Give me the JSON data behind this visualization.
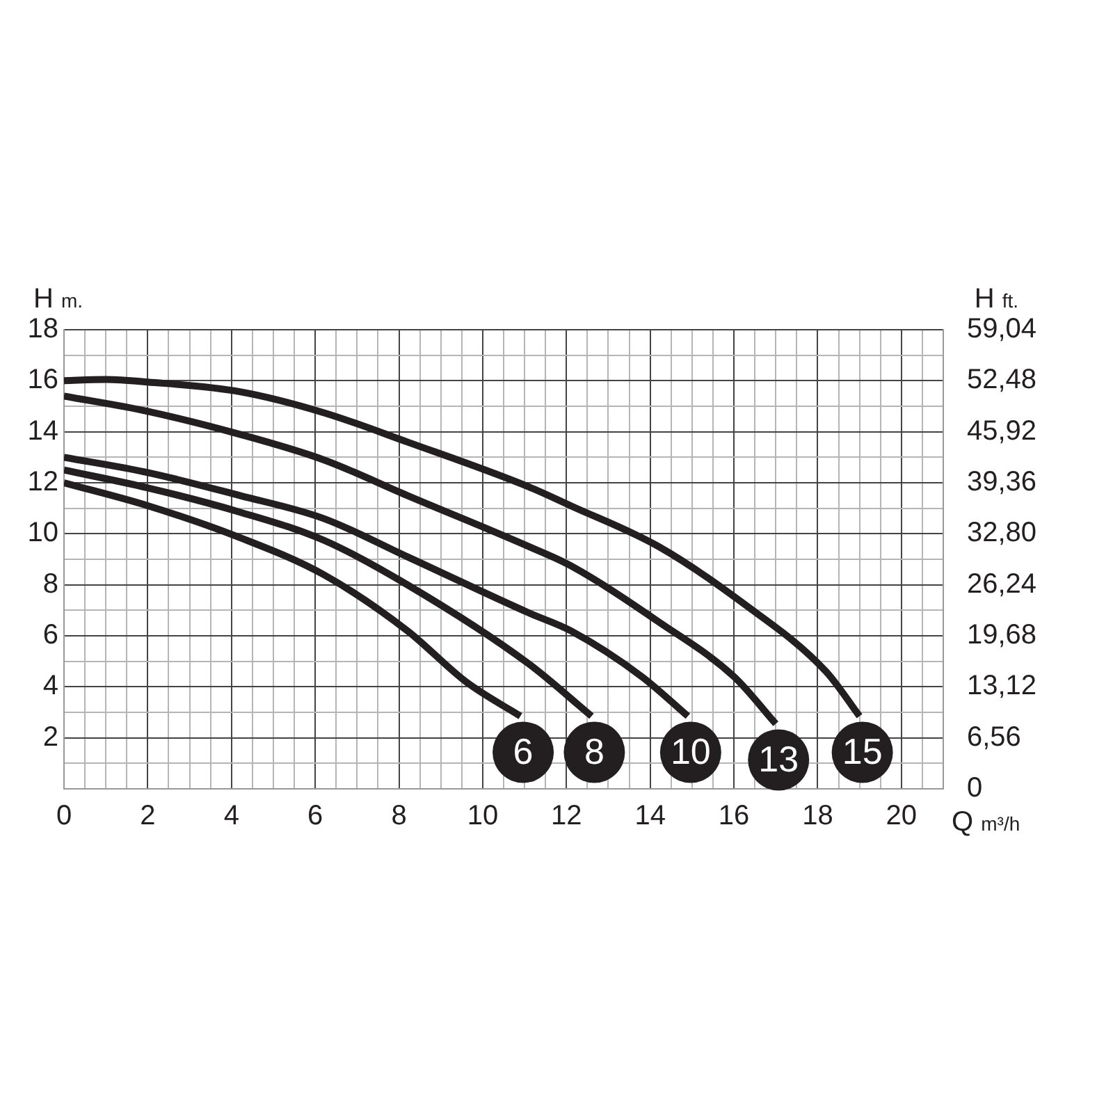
{
  "chart_data": {
    "type": "line",
    "xlabel": "Q m³/h",
    "ylabel": "H m.",
    "y2label": "H ft.",
    "xlim": [
      0,
      21
    ],
    "xticks": [
      0,
      {
        "value": 0.5,
        "label": null
      },
      {
        "value": 1,
        "label": null
      },
      {
        "value": 1.5,
        "label": null
      },
      2,
      {
        "value": 2.5,
        "label": null
      },
      {
        "value": 3,
        "label": null
      },
      {
        "value": 3.5,
        "label": null
      },
      4,
      {
        "value": 4.5,
        "label": null
      },
      {
        "value": 5,
        "label": null
      },
      {
        "value": 5.5,
        "label": null
      },
      6,
      {
        "value": 6.5,
        "label": null
      },
      {
        "value": 7,
        "label": null
      },
      {
        "value": 7.5,
        "label": null
      },
      8,
      {
        "value": 8.5,
        "label": null
      },
      {
        "value": 9,
        "label": null
      },
      {
        "value": 9.5,
        "label": null
      },
      10,
      {
        "value": 10.5,
        "label": null
      },
      {
        "value": 11,
        "label": null
      },
      {
        "value": 11.5,
        "label": null
      },
      12,
      {
        "value": 12.5,
        "label": null
      },
      {
        "value": 13,
        "label": null
      },
      {
        "value": 13.5,
        "label": null
      },
      14,
      {
        "value": 14.5,
        "label": null
      },
      {
        "value": 15,
        "label": null
      },
      {
        "value": 15.5,
        "label": null
      },
      16,
      {
        "value": 16.5,
        "label": null
      },
      {
        "value": 17,
        "label": null
      },
      {
        "value": 17.5,
        "label": null
      },
      18,
      {
        "value": 18.5,
        "label": null
      },
      {
        "value": 19,
        "label": null
      },
      {
        "value": 19.5,
        "label": null
      },
      20,
      {
        "value": 20.5,
        "label": null
      },
      {
        "value": 21,
        "label": null
      }
    ],
    "ylim": [
      0,
      18
    ],
    "yticks": [
      {
        "value": 0,
        "label": null
      },
      {
        "value": 1,
        "label": null
      },
      2,
      {
        "value": 3,
        "label": null
      },
      4,
      {
        "value": 5,
        "label": null
      },
      6,
      {
        "value": 7,
        "label": null
      },
      8,
      {
        "value": 9,
        "label": null
      },
      10,
      {
        "value": 11,
        "label": null
      },
      12,
      {
        "value": 13,
        "label": null
      },
      14,
      {
        "value": 15,
        "label": null
      },
      16,
      {
        "value": 17,
        "label": null
      },
      18
    ],
    "y2lim": [
      0,
      59.04
    ],
    "y2ticks": [
      0,
      {
        "value": 6.56,
        "label": "6,56"
      },
      {
        "value": 13.12,
        "label": "13,12"
      },
      {
        "value": 19.68,
        "label": "19,68"
      },
      {
        "value": 26.24,
        "label": "26,24"
      },
      {
        "value": 32.8,
        "label": "32,80"
      },
      {
        "value": 39.36,
        "label": "39,36"
      },
      {
        "value": 45.92,
        "label": "45,92"
      },
      {
        "value": 52.48,
        "label": "52,48"
      },
      {
        "value": 59.04,
        "label": "59,04"
      }
    ],
    "grid": true,
    "legend": "bottom right",
    "marker": "none",
    "line_style": "solid",
    "series": [
      {
        "name": "6",
        "color": "#231f20",
        "x": [
          0,
          2,
          4.2,
          6.2,
          8.2,
          9.6,
          10.9
        ],
        "values": [
          12,
          11.1,
          9.85,
          8.4,
          6.2,
          4.2,
          2.85
        ]
      },
      {
        "name": "8",
        "color": "#231f20",
        "x": [
          0,
          2,
          4.2,
          6.2,
          8.2,
          11.1,
          12.6
        ],
        "values": [
          12.5,
          11.8,
          10.85,
          9.75,
          8,
          4.9,
          2.85
        ]
      },
      {
        "name": "10",
        "color": "#231f20",
        "x": [
          0,
          2,
          4.2,
          6.2,
          8.2,
          11.1,
          12.1,
          13.8,
          14.9
        ],
        "values": [
          13,
          12.4,
          11.5,
          10.6,
          9.1,
          6.9,
          6.2,
          4.4,
          2.85
        ]
      },
      {
        "name": "13",
        "color": "#231f20",
        "x": [
          0,
          2,
          4.2,
          6.2,
          8.2,
          11.1,
          12.1,
          14.2,
          16,
          17
        ],
        "values": [
          15.4,
          14.8,
          13.9,
          12.9,
          11.5,
          9.5,
          8.75,
          6.55,
          4.4,
          2.55
        ]
      },
      {
        "name": "15",
        "color": "#231f20",
        "x": [
          0,
          1,
          2,
          4.2,
          6.2,
          8.2,
          11.1,
          12.1,
          14.2,
          16.2,
          18.2,
          19
        ],
        "values": [
          16,
          16.05,
          15.95,
          15.57,
          14.75,
          13.6,
          11.84,
          11.1,
          9.5,
          7.3,
          4.6,
          2.85
        ]
      }
    ]
  }
}
